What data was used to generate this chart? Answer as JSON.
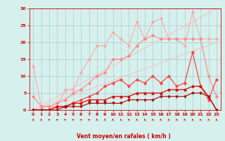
{
  "xlabel": "Vent moyen/en rafales ( km/h )",
  "xlim": [
    -0.5,
    23.5
  ],
  "ylim": [
    0,
    30
  ],
  "yticks": [
    0,
    5,
    10,
    15,
    20,
    25,
    30
  ],
  "xticks": [
    0,
    1,
    2,
    3,
    4,
    5,
    6,
    7,
    8,
    9,
    10,
    11,
    12,
    13,
    14,
    15,
    16,
    17,
    18,
    19,
    20,
    21,
    22,
    23
  ],
  "bg_color": "#d6f0ee",
  "grid_color": "#aacccc",
  "x": [
    0,
    1,
    2,
    3,
    4,
    5,
    6,
    7,
    8,
    9,
    10,
    11,
    12,
    13,
    14,
    15,
    16,
    17,
    18,
    19,
    20,
    21,
    22,
    23
  ],
  "line1_color": "#ffaaaa",
  "line2_color": "#ff8888",
  "line3_color": "#ff4444",
  "line4_color": "#dd0000",
  "line5_color": "#aa0000",
  "line1_y": [
    13,
    1,
    1,
    1,
    6,
    6,
    11,
    15,
    19,
    19,
    23,
    21,
    19,
    26,
    21,
    26,
    27,
    21,
    21,
    19,
    29,
    21,
    21,
    21
  ],
  "line2_y": [
    4,
    1,
    1,
    2,
    3,
    5,
    6,
    8,
    10,
    11,
    15,
    15,
    16,
    19,
    21,
    22,
    21,
    21,
    21,
    21,
    21,
    21,
    10,
    4
  ],
  "line3_y": [
    0,
    0,
    0,
    1,
    1,
    2,
    3,
    4,
    5,
    7,
    8,
    9,
    7,
    9,
    8,
    10,
    8,
    10,
    7,
    8,
    17,
    7,
    3,
    9
  ],
  "line4_y": [
    0,
    0,
    0,
    1,
    1,
    2,
    2,
    3,
    3,
    3,
    4,
    4,
    4,
    5,
    5,
    5,
    5,
    6,
    6,
    6,
    7,
    7,
    4,
    0
  ],
  "line5_y": [
    0,
    0,
    0,
    0,
    1,
    1,
    1,
    2,
    2,
    2,
    2,
    2,
    3,
    3,
    3,
    3,
    4,
    4,
    4,
    4,
    5,
    5,
    4,
    0
  ],
  "wind_angles": [
    180,
    180,
    225,
    225,
    225,
    225,
    225,
    225,
    180,
    180,
    180,
    200,
    210,
    200,
    190,
    200,
    200,
    210,
    200,
    200,
    200,
    210,
    200,
    200
  ]
}
